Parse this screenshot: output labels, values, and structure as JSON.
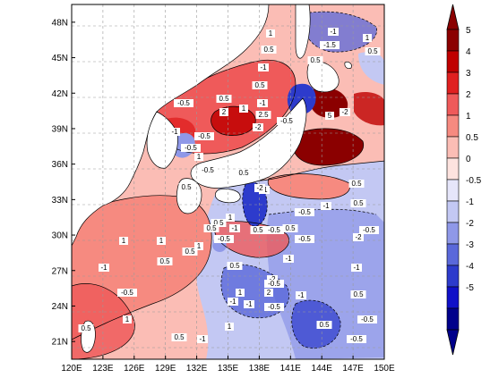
{
  "map": {
    "lon_range": [
      120,
      150
    ],
    "lat_range": [
      19.5,
      49.5
    ],
    "lon_ticks": [
      "120E",
      "123E",
      "126E",
      "129E",
      "132E",
      "135E",
      "138E",
      "141E",
      "144E",
      "147E",
      "150E"
    ],
    "lat_ticks": [
      "21N",
      "24N",
      "27N",
      "30N",
      "33N",
      "36N",
      "39N",
      "42N",
      "45N",
      "48N"
    ],
    "gridlines": "dashed",
    "land_color": "#ffffff",
    "contour_labels": [
      "-0.5",
      "0.5",
      "1",
      "-1",
      "-2",
      "2",
      "2.5",
      "5",
      "-0.5",
      "0.5",
      "1",
      "0.5",
      "-1",
      "-1.5",
      "-1",
      "0.5",
      "0.5",
      "1",
      "-0.5",
      "-1",
      "-2",
      "-0.5",
      "0.5",
      "1",
      "0.5",
      "-0.5",
      "-1",
      "-0.5",
      "0.5",
      "1",
      "0.5",
      "-1",
      "0.5",
      "1",
      "-1",
      "1",
      "2",
      "-2",
      "-0.5",
      "-1",
      "0.5",
      "-0.5",
      "0.5",
      "1",
      "-2",
      "-1",
      "-0.5",
      "0.5",
      "1",
      "-1",
      "-0.5",
      "0.5",
      "-1",
      "0.5",
      "-0.5",
      "-1",
      "-0.5",
      "0.5",
      "1",
      "0.5",
      "-0.5",
      "-1",
      "-2",
      "-0.5",
      "-0.5",
      "0.5",
      "0.5",
      "-1",
      "0.5",
      "1"
    ]
  },
  "colorbar": {
    "labels": [
      "5",
      "4",
      "3",
      "2",
      "1",
      "0.5",
      "0",
      "-0.5",
      "-1",
      "-2",
      "-3",
      "-4",
      "-5"
    ],
    "colors": [
      "#8b0000",
      "#bf0000",
      "#e02020",
      "#ef5a5a",
      "#f68a80",
      "#fbbdb5",
      "#fde3df",
      "#e6e6fa",
      "#c3c8f3",
      "#8f98e8",
      "#5a68da",
      "#2d3bcc",
      "#1010c8",
      "#00008b"
    ],
    "end_colors": {
      "top": "#8b0000",
      "bottom": "#00008b"
    }
  }
}
